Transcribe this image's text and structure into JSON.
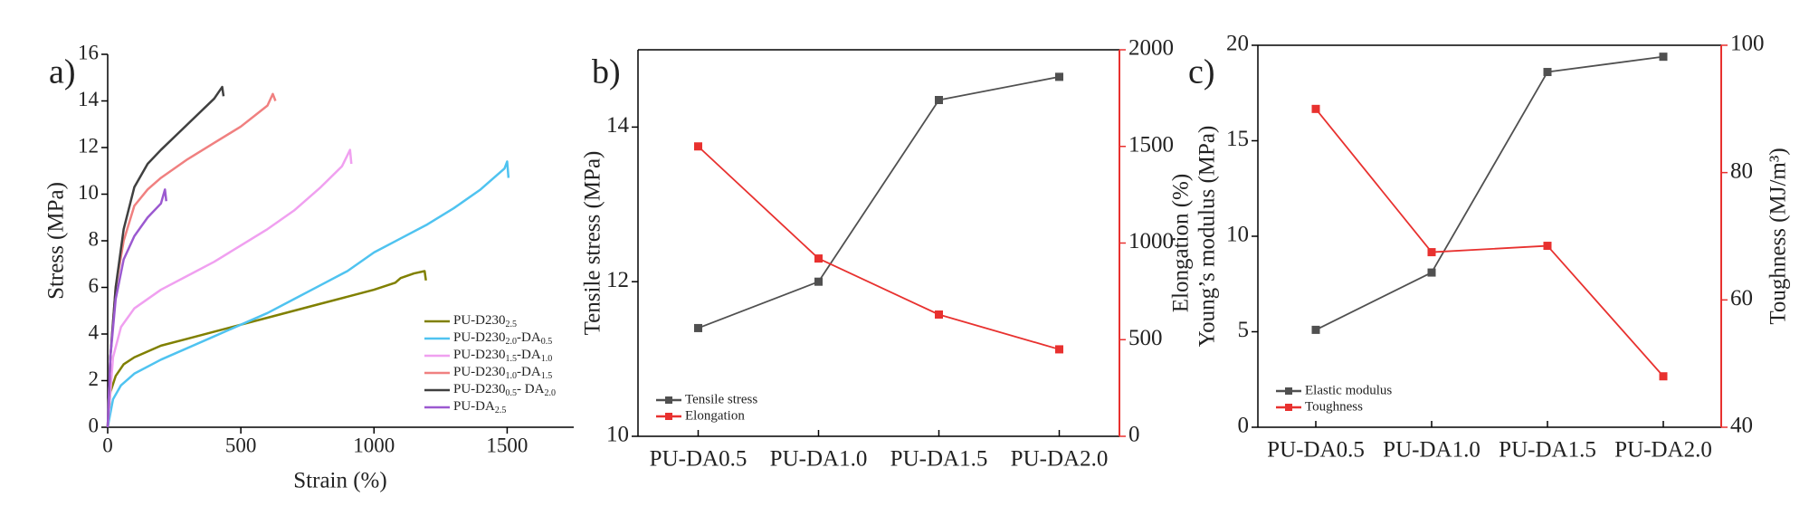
{
  "chart_data": [
    {
      "type": "line",
      "panel_label": "a)",
      "x_label": "Strain (%)",
      "y_label": "Stress (MPa)",
      "xlim": [
        0,
        1750
      ],
      "xticks": [
        0,
        500,
        1000,
        1500
      ],
      "ylim": [
        0,
        16
      ],
      "yticks": [
        0,
        2,
        4,
        6,
        8,
        10,
        12,
        14,
        16
      ],
      "legend": "lower right",
      "box": false,
      "series": [
        {
          "name": [
            "PU-D230",
            "2.5"
          ],
          "color": "#808000",
          "x": [
            0,
            10,
            30,
            60,
            100,
            200,
            300,
            400,
            500,
            600,
            700,
            800,
            900,
            1000,
            1080,
            1100,
            1150,
            1190,
            1195
          ],
          "values": [
            0,
            1.5,
            2.2,
            2.7,
            3.0,
            3.5,
            3.8,
            4.1,
            4.4,
            4.7,
            5.0,
            5.3,
            5.6,
            5.9,
            6.2,
            6.4,
            6.6,
            6.7,
            6.3
          ]
        },
        {
          "name": [
            "PU-D230",
            "2.0",
            "-DA",
            "0.5"
          ],
          "color": "#4fc3f0",
          "x": [
            0,
            20,
            50,
            100,
            200,
            300,
            400,
            500,
            600,
            700,
            800,
            900,
            1000,
            1100,
            1200,
            1300,
            1400,
            1450,
            1490,
            1500,
            1505
          ],
          "values": [
            0,
            1.2,
            1.8,
            2.3,
            2.9,
            3.4,
            3.9,
            4.4,
            4.9,
            5.5,
            6.1,
            6.7,
            7.5,
            8.1,
            8.7,
            9.4,
            10.2,
            10.7,
            11.1,
            11.4,
            10.7
          ]
        },
        {
          "name": [
            "PU-D230",
            "1.5",
            "-DA",
            "1.0"
          ],
          "color": "#f0a0f0",
          "x": [
            0,
            20,
            50,
            100,
            200,
            300,
            400,
            500,
            600,
            700,
            800,
            880,
            910,
            915
          ],
          "values": [
            0,
            3,
            4.3,
            5.1,
            5.9,
            6.5,
            7.1,
            7.8,
            8.5,
            9.3,
            10.3,
            11.2,
            11.9,
            11.3
          ]
        },
        {
          "name": [
            "PU-D230",
            "1.0",
            "-DA",
            "1.5"
          ],
          "color": "#f08080",
          "x": [
            0,
            10,
            30,
            60,
            100,
            150,
            200,
            300,
            400,
            500,
            600,
            620,
            630
          ],
          "values": [
            0,
            3,
            6,
            8,
            9.5,
            10.2,
            10.7,
            11.5,
            12.2,
            12.9,
            13.8,
            14.3,
            14.0
          ]
        },
        {
          "name": [
            "PU-D230",
            "0.5",
            "- DA",
            "2.0"
          ],
          "color": "#404040",
          "x": [
            0,
            10,
            30,
            60,
            100,
            150,
            200,
            300,
            400,
            430,
            435
          ],
          "values": [
            0,
            3,
            6,
            8.5,
            10.3,
            11.3,
            11.9,
            13.0,
            14.1,
            14.6,
            14.2
          ]
        },
        {
          "name": [
            "PU-DA",
            "2.5"
          ],
          "color": "#9b59d0",
          "x": [
            0,
            10,
            30,
            60,
            100,
            150,
            200,
            215,
            220
          ],
          "values": [
            0,
            3,
            5.5,
            7.2,
            8.2,
            9.0,
            9.6,
            10.2,
            9.7
          ]
        }
      ]
    },
    {
      "type": "line",
      "panel_label": "b)",
      "y_label": "Tensile stress (MPa)",
      "y2_label": "Elongation (%)",
      "categories": [
        "PU-DA0.5",
        "PU-DA1.0",
        "PU-DA1.5",
        "PU-DA2.0"
      ],
      "ylim": [
        10,
        15
      ],
      "yticks": [
        10,
        12,
        14
      ],
      "y2lim": [
        0,
        2000
      ],
      "y2ticks": [
        0,
        500,
        1000,
        1500,
        2000
      ],
      "legend": "lower left",
      "box": true,
      "markers": true,
      "series": [
        {
          "name": "Tensile stress",
          "color": "#505050",
          "values": [
            11.4,
            12.0,
            14.35,
            14.65
          ]
        },
        {
          "name": "Elongation",
          "color": "#e8312f",
          "axis": "y2",
          "values": [
            1500,
            920,
            630,
            450
          ]
        }
      ]
    },
    {
      "type": "line",
      "panel_label": "c)",
      "y_label": "Young’s modulus (MPa)",
      "y2_label": "Toughness (MJ/m³)",
      "categories": [
        "PU-DA0.5",
        "PU-DA1.0",
        "PU-DA1.5",
        "PU-DA2.0"
      ],
      "ylim": [
        0,
        20
      ],
      "yticks": [
        0,
        5,
        10,
        15,
        20
      ],
      "y2lim": [
        40,
        100
      ],
      "y2ticks": [
        40,
        60,
        80,
        100
      ],
      "legend": "lower left",
      "box": true,
      "markers": true,
      "series": [
        {
          "name": "Elastic modulus",
          "color": "#505050",
          "values": [
            5.1,
            8.1,
            18.6,
            19.4
          ]
        },
        {
          "name": "Toughness",
          "color": "#e8312f",
          "axis": "y2",
          "values": [
            90,
            67.5,
            68.5,
            48
          ]
        }
      ]
    }
  ]
}
